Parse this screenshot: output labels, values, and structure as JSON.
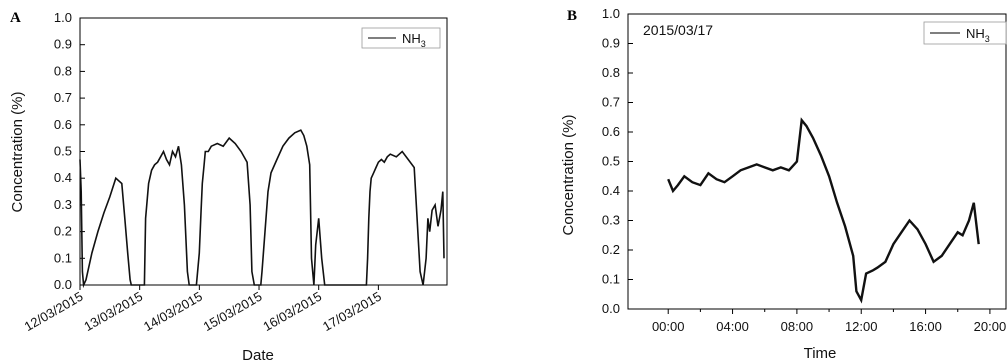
{
  "chart_data": [
    {
      "panel": "A",
      "type": "line",
      "xlabel": "Date",
      "ylabel": "Concentration (%)",
      "ylim": [
        0,
        1.0
      ],
      "yticks": [
        "0.0",
        "0.1",
        "0.2",
        "0.3",
        "0.4",
        "0.5",
        "0.6",
        "0.7",
        "0.8",
        "0.9",
        "1.0"
      ],
      "x_tick_labels": [
        "12/03/2015",
        "13/03/2015",
        "14/03/2015",
        "15/03/2015",
        "16/03/2015",
        "17/03/2015"
      ],
      "xlim": [
        0,
        6.15
      ],
      "legend": {
        "position": "top-right",
        "entries": [
          "NH3"
        ]
      },
      "grid": false,
      "series": [
        {
          "name": "NH3",
          "x": [
            0.0,
            0.02,
            0.04,
            0.06,
            0.1,
            0.2,
            0.3,
            0.4,
            0.5,
            0.6,
            0.7,
            0.75,
            0.8,
            0.84,
            0.86,
            0.88,
            0.9,
            0.95,
            1.0,
            1.05,
            1.08,
            1.1,
            1.15,
            1.2,
            1.25,
            1.3,
            1.35,
            1.4,
            1.45,
            1.5,
            1.55,
            1.6,
            1.65,
            1.7,
            1.75,
            1.8,
            1.83,
            1.85,
            1.88,
            1.92,
            1.95,
            2.0,
            2.03,
            2.05,
            2.08,
            2.1,
            2.15,
            2.2,
            2.3,
            2.4,
            2.5,
            2.6,
            2.7,
            2.8,
            2.85,
            2.88,
            2.92,
            2.95,
            3.0,
            3.03,
            3.05,
            3.1,
            3.15,
            3.2,
            3.3,
            3.4,
            3.5,
            3.6,
            3.7,
            3.75,
            3.8,
            3.85,
            3.88,
            3.92,
            3.95,
            4.0,
            4.05,
            4.1,
            4.15,
            4.2,
            4.3,
            4.4,
            4.5,
            4.6,
            4.7,
            4.75,
            4.8,
            4.82,
            4.84,
            4.86,
            4.88,
            4.92,
            4.96,
            5.0,
            5.05,
            5.1,
            5.15,
            5.2,
            5.3,
            5.4,
            5.5,
            5.6,
            5.7,
            5.75,
            5.8,
            5.83,
            5.86,
            5.9,
            5.95,
            6.0,
            6.05,
            6.08,
            6.1
          ],
          "values": [
            0.47,
            0.35,
            0.05,
            0.0,
            0.02,
            0.12,
            0.2,
            0.27,
            0.33,
            0.4,
            0.38,
            0.25,
            0.12,
            0.02,
            0.0,
            0.0,
            0.0,
            0.0,
            0.0,
            0.0,
            0.0,
            0.25,
            0.38,
            0.43,
            0.45,
            0.46,
            0.48,
            0.5,
            0.47,
            0.45,
            0.5,
            0.48,
            0.52,
            0.45,
            0.3,
            0.05,
            0.0,
            0.0,
            0.0,
            0.0,
            0.0,
            0.12,
            0.28,
            0.38,
            0.45,
            0.5,
            0.5,
            0.52,
            0.53,
            0.52,
            0.55,
            0.53,
            0.5,
            0.46,
            0.3,
            0.05,
            0.0,
            0.0,
            0.0,
            0.0,
            0.05,
            0.2,
            0.35,
            0.42,
            0.47,
            0.52,
            0.55,
            0.57,
            0.58,
            0.56,
            0.52,
            0.45,
            0.1,
            0.0,
            0.15,
            0.25,
            0.1,
            0.0,
            0.0,
            0.0,
            0.0,
            0.0,
            0.0,
            0.0,
            0.0,
            0.0,
            0.0,
            0.1,
            0.25,
            0.35,
            0.4,
            0.42,
            0.44,
            0.46,
            0.47,
            0.46,
            0.48,
            0.49,
            0.48,
            0.5,
            0.47,
            0.44,
            0.05,
            0.0,
            0.1,
            0.25,
            0.2,
            0.28,
            0.3,
            0.22,
            0.28,
            0.35,
            0.1
          ]
        }
      ]
    },
    {
      "panel": "B",
      "type": "line",
      "title": "2015/03/17",
      "xlabel": "Time",
      "ylabel": "Concentration (%)",
      "ylim": [
        0,
        1.0
      ],
      "yticks": [
        "0.0",
        "0.1",
        "0.2",
        "0.3",
        "0.4",
        "0.5",
        "0.6",
        "0.7",
        "0.8",
        "0.9",
        "1.0"
      ],
      "x_tick_labels": [
        "00:00",
        "04:00",
        "08:00",
        "12:00",
        "16:00",
        "20:00"
      ],
      "xlim": [
        -2.5,
        21
      ],
      "legend": {
        "position": "top-right",
        "entries": [
          "NH3"
        ]
      },
      "grid": false,
      "series": [
        {
          "name": "NH3",
          "x": [
            0.0,
            0.3,
            0.6,
            1.0,
            1.5,
            2.0,
            2.5,
            3.0,
            3.5,
            4.0,
            4.5,
            5.0,
            5.5,
            6.0,
            6.5,
            7.0,
            7.5,
            8.0,
            8.3,
            8.6,
            9.0,
            9.5,
            10.0,
            10.5,
            11.0,
            11.5,
            11.7,
            12.0,
            12.3,
            12.7,
            13.0,
            13.5,
            14.0,
            14.5,
            15.0,
            15.5,
            16.0,
            16.5,
            17.0,
            17.5,
            18.0,
            18.3,
            18.7,
            19.0,
            19.3
          ],
          "values": [
            0.44,
            0.4,
            0.42,
            0.45,
            0.43,
            0.42,
            0.46,
            0.44,
            0.43,
            0.45,
            0.47,
            0.48,
            0.49,
            0.48,
            0.47,
            0.48,
            0.47,
            0.5,
            0.64,
            0.62,
            0.58,
            0.52,
            0.45,
            0.36,
            0.28,
            0.18,
            0.06,
            0.03,
            0.12,
            0.13,
            0.14,
            0.16,
            0.22,
            0.26,
            0.3,
            0.27,
            0.22,
            0.16,
            0.18,
            0.22,
            0.26,
            0.25,
            0.3,
            0.36,
            0.22
          ]
        }
      ]
    }
  ]
}
